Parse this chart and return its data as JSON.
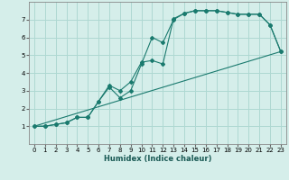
{
  "xlabel": "Humidex (Indice chaleur)",
  "bg_color": "#d5eeea",
  "grid_color": "#aed8d2",
  "line_color": "#1a7a6e",
  "xlim": [
    -0.5,
    23.5
  ],
  "ylim": [
    0,
    8
  ],
  "xticks": [
    0,
    1,
    2,
    3,
    4,
    5,
    6,
    7,
    8,
    9,
    10,
    11,
    12,
    13,
    14,
    15,
    16,
    17,
    18,
    19,
    20,
    21,
    22,
    23
  ],
  "yticks": [
    1,
    2,
    3,
    4,
    5,
    6,
    7
  ],
  "line1_x": [
    0,
    1,
    2,
    3,
    4,
    5,
    6,
    7,
    8,
    9,
    10,
    11,
    12,
    13,
    14,
    15,
    16,
    17,
    18,
    19,
    20,
    21,
    22,
    23
  ],
  "line1_y": [
    1.0,
    1.0,
    1.1,
    1.2,
    1.5,
    1.5,
    2.4,
    3.2,
    2.6,
    3.0,
    4.5,
    6.0,
    5.7,
    7.0,
    7.35,
    7.5,
    7.5,
    7.5,
    7.4,
    7.3,
    7.3,
    7.3,
    6.7,
    5.2
  ],
  "line2_x": [
    0,
    1,
    2,
    3,
    4,
    5,
    6,
    7,
    8,
    9,
    10,
    11,
    12,
    13,
    14,
    15,
    16,
    17,
    18,
    19,
    20,
    21,
    22,
    23
  ],
  "line2_y": [
    1.0,
    1.0,
    1.1,
    1.2,
    1.5,
    1.5,
    2.4,
    3.3,
    3.0,
    3.5,
    4.6,
    4.7,
    4.5,
    7.05,
    7.35,
    7.5,
    7.5,
    7.5,
    7.4,
    7.3,
    7.3,
    7.3,
    6.7,
    5.2
  ],
  "line3_x": [
    0,
    23
  ],
  "line3_y": [
    1.0,
    5.2
  ],
  "xlabel_fontsize": 6,
  "tick_fontsize": 5
}
